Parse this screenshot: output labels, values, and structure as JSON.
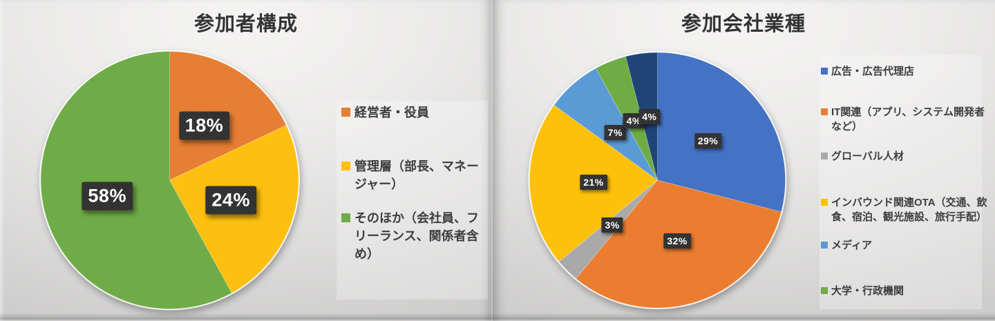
{
  "page": {
    "description": "Two presentation-slide pie charts, Japanese event statistics",
    "slide_count": 2
  },
  "chart_data": [
    {
      "type": "pie",
      "title": "参加者構成",
      "legend_position": "right",
      "data_label_style": "percent in dark checkered box, white bold text",
      "slices": [
        {
          "label": "経営者・役員",
          "value": 18,
          "percent_label": "18%",
          "color": "#E67E33"
        },
        {
          "label": "管理層（部長、マネージャー）",
          "value": 24,
          "percent_label": "24%",
          "color": "#FDC010"
        },
        {
          "label": "そのほか（会社員、フリーランス、関係者含め）",
          "value": 58,
          "percent_label": "58%",
          "color": "#6FAC47"
        }
      ]
    },
    {
      "type": "pie",
      "title": "参加会社業種",
      "legend_position": "right",
      "data_label_style": "percent in dark checkered box, white bold text",
      "slices": [
        {
          "label": "広告・広告代理店",
          "value": 29,
          "percent_label": "29%",
          "color": "#4472C4"
        },
        {
          "label": "IT関連（アプリ、システム開発者など）",
          "value": 32,
          "percent_label": "32%",
          "color": "#EB7D30"
        },
        {
          "label": "グローバル人材",
          "value": 3,
          "percent_label": "3%",
          "color": "#A9A9A9"
        },
        {
          "label": "インバウンド関連OTA（交通、飲食、宿泊、観光施設、旅行手配）",
          "value": 21,
          "percent_label": "21%",
          "color": "#FDC00B"
        },
        {
          "label": "メディア",
          "value": 7,
          "percent_label": "7%",
          "color": "#5B9BD5"
        },
        {
          "label": "大学・行政機関",
          "value": 4,
          "percent_label": "4%",
          "color": "#6FAC44"
        },
        {
          "label": "",
          "value": 4,
          "percent_label": "4%",
          "color": "#1F4577",
          "in_legend": false
        }
      ]
    }
  ]
}
